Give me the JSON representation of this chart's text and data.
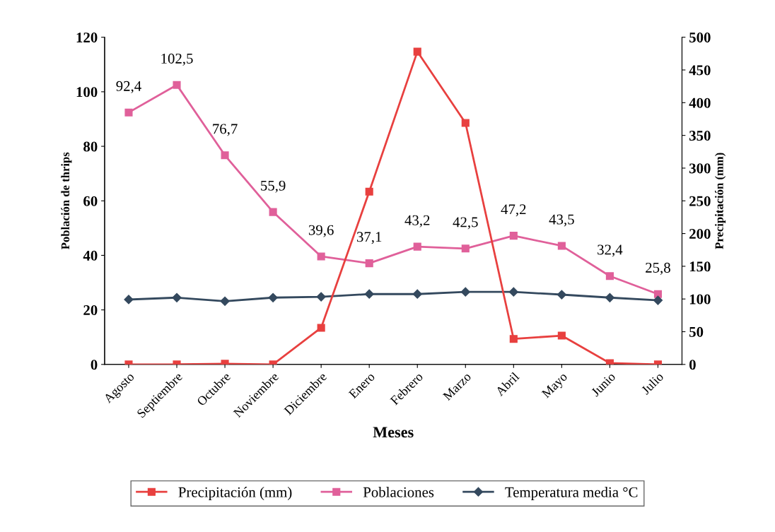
{
  "chart_data": {
    "type": "line",
    "xlabel": "Meses",
    "ylabel": "Población de thrips",
    "y2label": "Precipitación (mm)",
    "categories": [
      "Agosto",
      "Septiembre",
      "Octubre",
      "Noviembre",
      "Diciembre",
      "Enero",
      "Febrero",
      "Marzo",
      "Abril",
      "Mayo",
      "Junio",
      "Julio"
    ],
    "series": [
      {
        "name": "Precipitación (mm)",
        "color": "#e8403f",
        "axis": "y2",
        "marker": "square",
        "values": [
          0,
          0,
          1,
          0,
          56,
          264,
          478,
          369,
          39,
          44,
          2,
          0
        ]
      },
      {
        "name": "Poblaciones",
        "color": "#e0609a",
        "marker": "square",
        "values": [
          92.4,
          102.5,
          76.7,
          55.9,
          39.6,
          37.1,
          43.2,
          42.5,
          47.2,
          43.5,
          32.4,
          25.8
        ],
        "value_labels": [
          "92,4",
          "102,5",
          "76,7",
          "55,9",
          "39,6",
          "37,1",
          "43,2",
          "42,5",
          "47,2",
          "43,5",
          "32,4",
          "25,8"
        ]
      },
      {
        "name": "Temperatura media °C",
        "color": "#34495e",
        "marker": "diamond",
        "values": [
          23.8,
          24.5,
          23.2,
          24.5,
          24.8,
          25.8,
          25.8,
          26.6,
          26.6,
          25.6,
          24.5,
          23.5
        ]
      }
    ],
    "ylim": [
      0,
      120
    ],
    "yticks": [
      0,
      20,
      40,
      60,
      80,
      100,
      120
    ],
    "y2lim": [
      0,
      500
    ],
    "y2ticks": [
      0,
      50,
      100,
      150,
      200,
      250,
      300,
      350,
      400,
      450,
      500
    ],
    "grid": false,
    "legend": "bottom"
  }
}
